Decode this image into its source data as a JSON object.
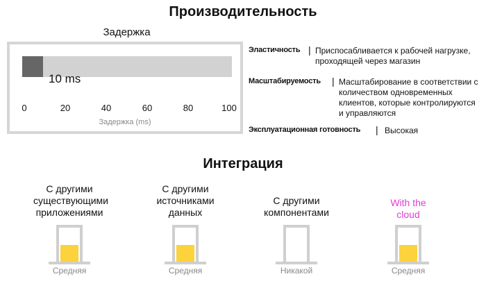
{
  "performance": {
    "title": "Производительность",
    "latency": {
      "label": "Задержка",
      "value_text": "10 ms",
      "value": 10,
      "max": 100,
      "ticks": [
        "0",
        "20",
        "40",
        "60",
        "80",
        "100"
      ],
      "axis_label": "Задержка (ms)",
      "colors": {
        "fill": "#666666",
        "track": "#d2d2d2",
        "frame": "#d6d6d6"
      }
    },
    "properties": [
      {
        "name": "Эластичность",
        "separator": "|",
        "value": "Приспосабливается к рабочей нагрузке, проходящей через магазин"
      },
      {
        "name": "Масштабируемость",
        "separator": "|",
        "value": "Масштабирование в соответствии с количеством одновременных клиентов, которые контролируются и управляются"
      },
      {
        "name": "Эксплуатационная готовность",
        "separator": "|",
        "value": "Высокая"
      }
    ]
  },
  "integration": {
    "title": "Интеграция",
    "items": [
      {
        "label": "С другими существующими приложениями",
        "level_label": "Средняя",
        "level": 0.5,
        "color": "#111111"
      },
      {
        "label": "С другими источниками данных",
        "level_label": "Средняя",
        "level": 0.5,
        "color": "#111111"
      },
      {
        "label": "С другими компонентами",
        "level_label": "Никакой",
        "level": 0,
        "color": "#111111"
      },
      {
        "label": "With the cloud",
        "level_label": "Средняя",
        "level": 0.5,
        "color": "#e13bd8"
      }
    ],
    "fill_color": "#fcd23d"
  }
}
